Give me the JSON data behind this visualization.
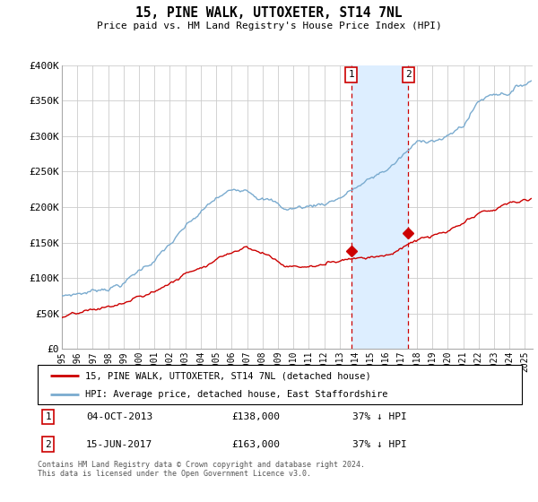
{
  "title": "15, PINE WALK, UTTOXETER, ST14 7NL",
  "subtitle": "Price paid vs. HM Land Registry's House Price Index (HPI)",
  "legend_line1": "15, PINE WALK, UTTOXETER, ST14 7NL (detached house)",
  "legend_line2": "HPI: Average price, detached house, East Staffordshire",
  "sale1_date": 2013.75,
  "sale1_price": 138000,
  "sale1_label": "04-OCT-2013",
  "sale1_pct": "37% ↓ HPI",
  "sale2_date": 2017.45,
  "sale2_price": 163000,
  "sale2_label": "15-JUN-2017",
  "sale2_pct": "37% ↓ HPI",
  "red_line_color": "#cc0000",
  "blue_line_color": "#7aabcf",
  "shade_color": "#ddeeff",
  "vline_color": "#cc0000",
  "footnote": "Contains HM Land Registry data © Crown copyright and database right 2024.\nThis data is licensed under the Open Government Licence v3.0.",
  "ylim": [
    0,
    400000
  ],
  "xlim_start": 1995.0,
  "xlim_end": 2025.5,
  "yticks": [
    0,
    50000,
    100000,
    150000,
    200000,
    250000,
    300000,
    350000,
    400000
  ],
  "ytick_labels": [
    "£0",
    "£50K",
    "£100K",
    "£150K",
    "£200K",
    "£250K",
    "£300K",
    "£350K",
    "£400K"
  ],
  "xtick_years": [
    1995,
    1996,
    1997,
    1998,
    1999,
    2000,
    2001,
    2002,
    2003,
    2004,
    2005,
    2006,
    2007,
    2008,
    2009,
    2010,
    2011,
    2012,
    2013,
    2014,
    2015,
    2016,
    2017,
    2018,
    2019,
    2020,
    2021,
    2022,
    2023,
    2024,
    2025
  ]
}
